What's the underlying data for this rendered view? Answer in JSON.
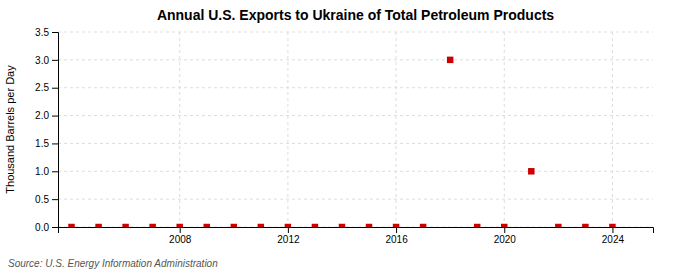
{
  "chart_data": {
    "type": "scatter",
    "title": "Annual U.S. Exports to Ukraine of Total Petroleum Products",
    "ylabel": "Thousand Barrels per Day",
    "annotations": [
      "Source: U.S. Energy Information Administration"
    ],
    "x": [
      2004,
      2005,
      2006,
      2007,
      2008,
      2009,
      2010,
      2011,
      2012,
      2013,
      2014,
      2015,
      2016,
      2017,
      2018,
      2019,
      2020,
      2021,
      2022,
      2023,
      2024
    ],
    "values": [
      0.0,
      0.0,
      0.0,
      0.0,
      0.0,
      0.0,
      0.0,
      0.0,
      0.0,
      0.0,
      0.0,
      0.0,
      0.0,
      0.0,
      3.0,
      0.0,
      0.0,
      1.0,
      0.0,
      0.0,
      0.0
    ],
    "color": "#CC0000",
    "marker": "square",
    "xlim": [
      2003.5,
      2025.5
    ],
    "xticks": [
      2008,
      2012,
      2016,
      2020,
      2024
    ],
    "ylim": [
      0,
      3.5
    ],
    "yticks": [
      {
        "value": 0.0,
        "label": "0.0"
      },
      0.5,
      {
        "value": 1.0,
        "label": "1.0"
      },
      1.5,
      {
        "value": 2.0,
        "label": "2.0"
      },
      2.5,
      {
        "value": 3.0,
        "label": "3.0"
      },
      3.5
    ],
    "grid": true
  }
}
